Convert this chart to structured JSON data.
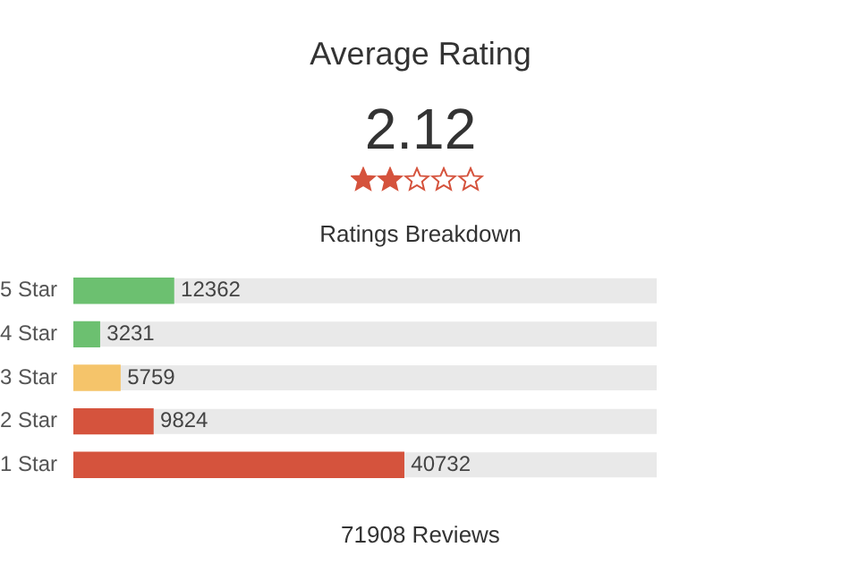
{
  "chart_data": {
    "type": "bar",
    "orientation": "horizontal",
    "title": "Average Rating",
    "subtitle": "2.12",
    "annotations": [
      "Ratings Breakdown",
      "71908 Reviews"
    ],
    "categories": [
      "5 Star",
      "4 Star",
      "3 Star",
      "2 Star",
      "1 Star"
    ],
    "values": [
      12362,
      3231,
      5759,
      9824,
      40732
    ],
    "colors": [
      "#6cc070",
      "#6cc070",
      "#f5c46a",
      "#d5533d",
      "#d5533d"
    ],
    "data_labels": true,
    "tick_labels": "y",
    "legend": false
  }
}
